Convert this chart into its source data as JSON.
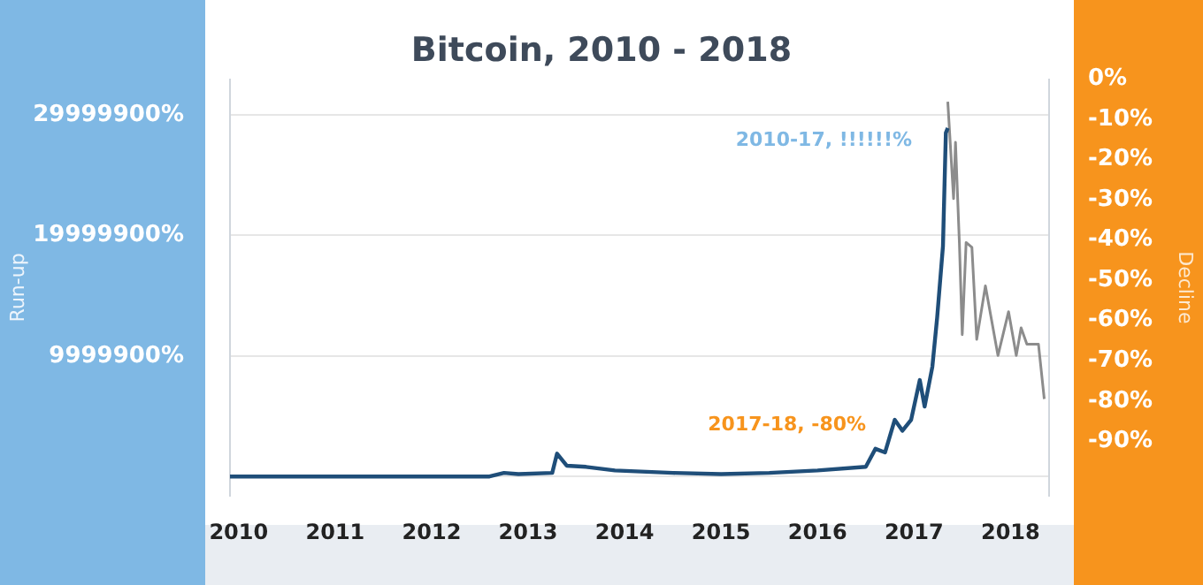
{
  "chart_data": {
    "type": "line",
    "title": "Bitcoin, 2010 - 2018",
    "ylabel": "Run-up",
    "y2label": "Decline",
    "xlim": [
      2009.91,
      2018.4
    ],
    "xticks": [
      2010,
      2011,
      2012,
      2013,
      2014,
      2015,
      2016,
      2017,
      2018
    ],
    "ylim": [
      -1610000,
      32950000
    ],
    "yticks": [
      {
        "value": -100,
        "label": null
      },
      {
        "value": 9999900,
        "label": "9999900%"
      },
      {
        "value": 19999900,
        "label": "19999900%"
      },
      {
        "value": 29999900,
        "label": "29999900%"
      }
    ],
    "y2lim": [
      -103.6,
      0
    ],
    "y2ticks": [
      {
        "value": 0,
        "label": "0%"
      },
      {
        "value": -10,
        "label": "-10%"
      },
      {
        "value": -20,
        "label": "-20%"
      },
      {
        "value": -30,
        "label": "-30%"
      },
      {
        "value": -40,
        "label": "-40%"
      },
      {
        "value": -50,
        "label": "-50%"
      },
      {
        "value": -60,
        "label": "-60%"
      },
      {
        "value": -70,
        "label": "-70%"
      },
      {
        "value": -80,
        "label": "-80%"
      },
      {
        "value": -90,
        "label": "-90%"
      }
    ],
    "grid": "y",
    "legend": false,
    "marker": "none",
    "line_style": "solid",
    "series": [
      {
        "color": "#1f4e79",
        "x": [
          2009.91,
          2012.6,
          2012.75,
          2012.9,
          2013.25,
          2013.3,
          2013.4,
          2013.6,
          2013.9,
          2014.5,
          2015.0,
          2015.5,
          2016.0,
          2016.5,
          2016.6,
          2016.7,
          2016.8,
          2016.88,
          2016.97,
          2017.06,
          2017.11,
          2017.19,
          2017.24,
          2017.3,
          2017.33,
          2017.35
        ],
        "values": [
          0,
          0,
          300000,
          200000,
          300000,
          1900000,
          900000,
          800000,
          500000,
          300000,
          200000,
          300000,
          500000,
          800000,
          2300000,
          2000000,
          4700000,
          3800000,
          4700000,
          8000000,
          5800000,
          9100000,
          13200000,
          19100000,
          28500000,
          28900000
        ]
      },
      {
        "color": "#8c8c8c",
        "axis": "y2",
        "x": [
          2017.35,
          2017.41,
          2017.43,
          2017.47,
          2017.5,
          2017.54,
          2017.6,
          2017.65,
          2017.74,
          2017.87,
          2017.98,
          2018.06,
          2018.11,
          2018.17,
          2018.29,
          2018.35
        ],
        "values": [
          -5.6,
          -29.7,
          -15.7,
          -40.6,
          -63.5,
          -40.6,
          -41.8,
          -64.7,
          -51.4,
          -68.7,
          -57.8,
          -68.7,
          -61.8,
          -65.9,
          -65.9,
          -79.5
        ]
      }
    ],
    "annotations": [
      "2010-17, !!!!!!%",
      "2017-18, -80%"
    ]
  }
}
